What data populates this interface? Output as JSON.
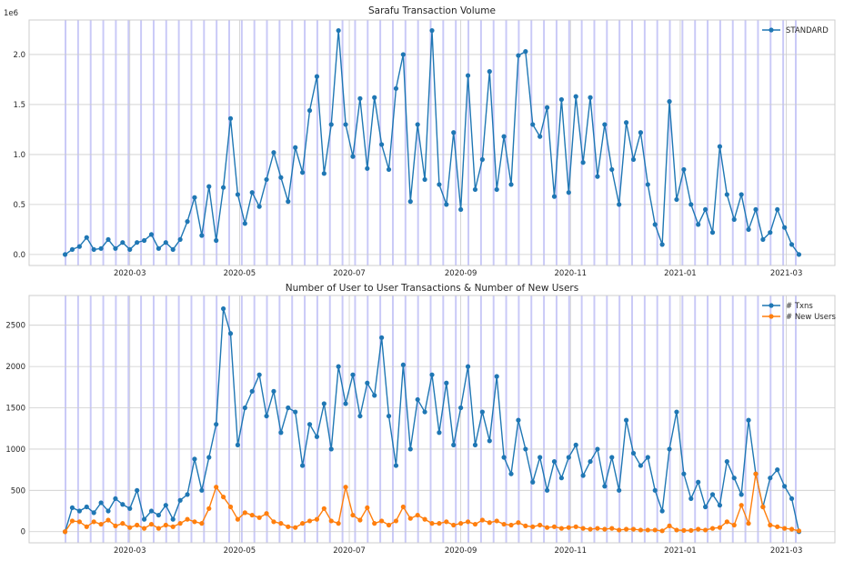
{
  "chart_data": [
    {
      "type": "line",
      "title": "Sarafu Transaction Volume",
      "y_multiplier_label": "1e6",
      "xlim": [
        "2020-01-05",
        "2021-03-28"
      ],
      "ylim": [
        -0.11,
        2.345
      ],
      "x_ticks": [
        {
          "date": "2020-03-01",
          "label": "2020-03"
        },
        {
          "date": "2020-05-01",
          "label": "2020-05"
        },
        {
          "date": "2020-07-01",
          "label": "2020-07"
        },
        {
          "date": "2020-09-01",
          "label": "2020-09"
        },
        {
          "date": "2020-11-01",
          "label": "2020-11"
        },
        {
          "date": "2021-01-01",
          "label": "2021-01"
        },
        {
          "date": "2021-03-01",
          "label": "2021-03"
        }
      ],
      "y_ticks": [
        {
          "value": 0,
          "label": "0.0"
        },
        {
          "value": 0.5,
          "label": "0.5"
        },
        {
          "value": 1.0,
          "label": "1.0"
        },
        {
          "value": 1.5,
          "label": "1.5"
        },
        {
          "value": 2.0,
          "label": "2.0"
        }
      ],
      "grid": true,
      "weekend_shading": true,
      "legend": "top-right",
      "x": [
        "2020-01-25",
        "2020-01-29",
        "2020-02-02",
        "2020-02-06",
        "2020-02-10",
        "2020-02-14",
        "2020-02-18",
        "2020-02-22",
        "2020-02-26",
        "2020-03-01",
        "2020-03-05",
        "2020-03-09",
        "2020-03-13",
        "2020-03-17",
        "2020-03-21",
        "2020-03-25",
        "2020-03-29",
        "2020-04-02",
        "2020-04-06",
        "2020-04-10",
        "2020-04-14",
        "2020-04-18",
        "2020-04-22",
        "2020-04-26",
        "2020-04-30",
        "2020-05-04",
        "2020-05-08",
        "2020-05-12",
        "2020-05-16",
        "2020-05-20",
        "2020-05-24",
        "2020-05-28",
        "2020-06-01",
        "2020-06-05",
        "2020-06-09",
        "2020-06-13",
        "2020-06-17",
        "2020-06-21",
        "2020-06-25",
        "2020-06-29",
        "2020-07-03",
        "2020-07-07",
        "2020-07-11",
        "2020-07-15",
        "2020-07-19",
        "2020-07-23",
        "2020-07-27",
        "2020-07-31",
        "2020-08-04",
        "2020-08-08",
        "2020-08-12",
        "2020-08-16",
        "2020-08-20",
        "2020-08-24",
        "2020-08-28",
        "2020-09-01",
        "2020-09-05",
        "2020-09-09",
        "2020-09-13",
        "2020-09-17",
        "2020-09-21",
        "2020-09-25",
        "2020-09-29",
        "2020-10-03",
        "2020-10-07",
        "2020-10-11",
        "2020-10-15",
        "2020-10-19",
        "2020-10-23",
        "2020-10-27",
        "2020-10-31",
        "2020-11-04",
        "2020-11-08",
        "2020-11-12",
        "2020-11-16",
        "2020-11-20",
        "2020-11-24",
        "2020-11-28",
        "2020-12-02",
        "2020-12-06",
        "2020-12-10",
        "2020-12-14",
        "2020-12-18",
        "2020-12-22",
        "2020-12-26",
        "2020-12-30",
        "2021-01-03",
        "2021-01-07",
        "2021-01-11",
        "2021-01-15",
        "2021-01-19",
        "2021-01-23",
        "2021-01-27",
        "2021-01-31",
        "2021-02-04",
        "2021-02-08",
        "2021-02-12",
        "2021-02-16",
        "2021-02-20",
        "2021-02-24",
        "2021-02-28",
        "2021-03-04",
        "2021-03-08"
      ],
      "series": [
        {
          "name": "STANDARD",
          "color": "#1f77b4",
          "values": [
            0.0,
            0.05,
            0.08,
            0.17,
            0.05,
            0.06,
            0.15,
            0.06,
            0.12,
            0.05,
            0.12,
            0.14,
            0.2,
            0.06,
            0.12,
            0.05,
            0.15,
            0.33,
            0.57,
            0.19,
            0.68,
            0.14,
            0.67,
            1.36,
            0.6,
            0.31,
            0.62,
            0.48,
            0.75,
            1.02,
            0.77,
            0.53,
            1.07,
            0.82,
            1.44,
            1.78,
            0.81,
            1.3,
            2.24,
            1.3,
            0.98,
            1.56,
            0.86,
            1.57,
            1.1,
            0.85,
            1.66,
            2.0,
            0.53,
            1.3,
            0.75,
            2.24,
            0.7,
            0.5,
            1.22,
            0.45,
            1.79,
            0.65,
            0.95,
            1.83,
            0.65,
            1.18,
            0.7,
            1.99,
            2.03,
            1.3,
            1.18,
            1.47,
            0.58,
            1.55,
            0.62,
            1.58,
            0.92,
            1.57,
            0.78,
            1.3,
            0.85,
            0.5,
            1.32,
            0.95,
            1.22,
            0.7,
            0.3,
            0.1,
            1.53,
            0.55,
            0.85,
            0.5,
            0.3,
            0.45,
            0.22,
            1.08,
            0.6,
            0.35,
            0.6,
            0.25,
            0.45,
            0.15,
            0.22,
            0.45,
            0.27,
            0.1,
            0.0
          ]
        }
      ]
    },
    {
      "type": "line",
      "title": "Number of User to User Transactions & Number of New Users",
      "xlim": [
        "2020-01-05",
        "2021-03-28"
      ],
      "ylim": [
        -135,
        2860
      ],
      "x_ticks": [
        {
          "date": "2020-03-01",
          "label": "2020-03"
        },
        {
          "date": "2020-05-01",
          "label": "2020-05"
        },
        {
          "date": "2020-07-01",
          "label": "2020-07"
        },
        {
          "date": "2020-09-01",
          "label": "2020-09"
        },
        {
          "date": "2020-11-01",
          "label": "2020-11"
        },
        {
          "date": "2021-01-01",
          "label": "2021-01"
        },
        {
          "date": "2021-03-01",
          "label": "2021-03"
        }
      ],
      "y_ticks": [
        {
          "value": 0,
          "label": "0"
        },
        {
          "value": 500,
          "label": "500"
        },
        {
          "value": 1000,
          "label": "1000"
        },
        {
          "value": 1500,
          "label": "1500"
        },
        {
          "value": 2000,
          "label": "2000"
        },
        {
          "value": 2500,
          "label": "2500"
        }
      ],
      "grid": true,
      "weekend_shading": true,
      "legend": "top-right",
      "x": [
        "2020-01-25",
        "2020-01-29",
        "2020-02-02",
        "2020-02-06",
        "2020-02-10",
        "2020-02-14",
        "2020-02-18",
        "2020-02-22",
        "2020-02-26",
        "2020-03-01",
        "2020-03-05",
        "2020-03-09",
        "2020-03-13",
        "2020-03-17",
        "2020-03-21",
        "2020-03-25",
        "2020-03-29",
        "2020-04-02",
        "2020-04-06",
        "2020-04-10",
        "2020-04-14",
        "2020-04-18",
        "2020-04-22",
        "2020-04-26",
        "2020-04-30",
        "2020-05-04",
        "2020-05-08",
        "2020-05-12",
        "2020-05-16",
        "2020-05-20",
        "2020-05-24",
        "2020-05-28",
        "2020-06-01",
        "2020-06-05",
        "2020-06-09",
        "2020-06-13",
        "2020-06-17",
        "2020-06-21",
        "2020-06-25",
        "2020-06-29",
        "2020-07-03",
        "2020-07-07",
        "2020-07-11",
        "2020-07-15",
        "2020-07-19",
        "2020-07-23",
        "2020-07-27",
        "2020-07-31",
        "2020-08-04",
        "2020-08-08",
        "2020-08-12",
        "2020-08-16",
        "2020-08-20",
        "2020-08-24",
        "2020-08-28",
        "2020-09-01",
        "2020-09-05",
        "2020-09-09",
        "2020-09-13",
        "2020-09-17",
        "2020-09-21",
        "2020-09-25",
        "2020-09-29",
        "2020-10-03",
        "2020-10-07",
        "2020-10-11",
        "2020-10-15",
        "2020-10-19",
        "2020-10-23",
        "2020-10-27",
        "2020-10-31",
        "2020-11-04",
        "2020-11-08",
        "2020-11-12",
        "2020-11-16",
        "2020-11-20",
        "2020-11-24",
        "2020-11-28",
        "2020-12-02",
        "2020-12-06",
        "2020-12-10",
        "2020-12-14",
        "2020-12-18",
        "2020-12-22",
        "2020-12-26",
        "2020-12-30",
        "2021-01-03",
        "2021-01-07",
        "2021-01-11",
        "2021-01-15",
        "2021-01-19",
        "2021-01-23",
        "2021-01-27",
        "2021-01-31",
        "2021-02-04",
        "2021-02-08",
        "2021-02-12",
        "2021-02-16",
        "2021-02-20",
        "2021-02-24",
        "2021-02-28",
        "2021-03-04",
        "2021-03-08"
      ],
      "series": [
        {
          "name": "# Txns",
          "color": "#1f77b4",
          "values": [
            0,
            290,
            250,
            300,
            230,
            350,
            250,
            400,
            330,
            280,
            500,
            150,
            250,
            200,
            320,
            150,
            380,
            450,
            880,
            500,
            900,
            1300,
            2700,
            2400,
            1050,
            1500,
            1700,
            1900,
            1400,
            1700,
            1200,
            1500,
            1450,
            800,
            1300,
            1150,
            1550,
            1000,
            2000,
            1550,
            1900,
            1400,
            1800,
            1650,
            2350,
            1400,
            800,
            2020,
            1000,
            1600,
            1450,
            1900,
            1200,
            1800,
            1050,
            1500,
            2000,
            1050,
            1450,
            1100,
            1880,
            900,
            700,
            1350,
            1000,
            600,
            900,
            500,
            850,
            650,
            900,
            1050,
            680,
            850,
            1000,
            550,
            900,
            500,
            1350,
            950,
            800,
            900,
            500,
            250,
            1000,
            1450,
            700,
            400,
            600,
            300,
            450,
            320,
            850,
            650,
            450,
            1350,
            700,
            300,
            650,
            750,
            550,
            400,
            0
          ]
        },
        {
          "name": "# New Users",
          "color": "#ff7f0e",
          "values": [
            0,
            130,
            120,
            60,
            120,
            90,
            140,
            70,
            100,
            50,
            80,
            40,
            90,
            40,
            80,
            60,
            100,
            150,
            120,
            100,
            280,
            540,
            420,
            300,
            150,
            230,
            200,
            170,
            220,
            120,
            100,
            60,
            50,
            100,
            130,
            150,
            280,
            130,
            100,
            540,
            200,
            140,
            290,
            100,
            130,
            80,
            130,
            300,
            160,
            200,
            150,
            100,
            100,
            120,
            80,
            100,
            120,
            90,
            140,
            110,
            130,
            90,
            80,
            110,
            70,
            60,
            80,
            50,
            60,
            40,
            50,
            60,
            40,
            30,
            40,
            30,
            40,
            20,
            30,
            30,
            20,
            20,
            20,
            10,
            70,
            20,
            15,
            15,
            30,
            20,
            40,
            50,
            120,
            80,
            320,
            100,
            700,
            300,
            80,
            60,
            40,
            30,
            10
          ]
        }
      ]
    }
  ]
}
